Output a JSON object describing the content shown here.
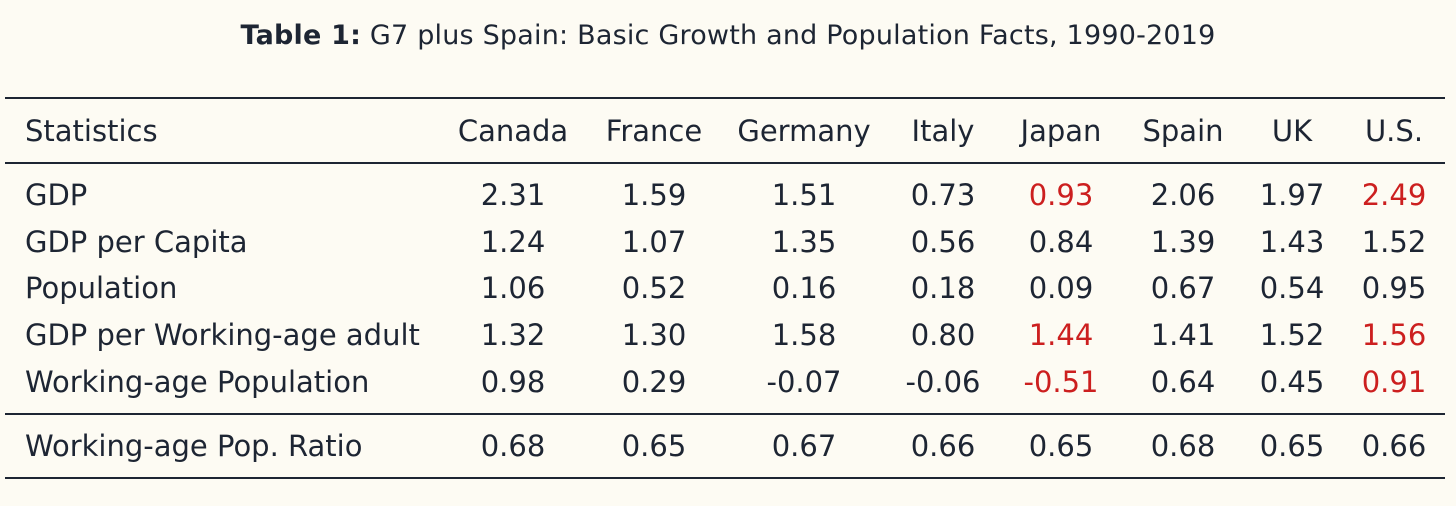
{
  "caption": {
    "label": "Table 1:",
    "title": "G7 plus Spain: Basic Growth and Population Facts, 1990-2019"
  },
  "header": [
    "Statistics",
    "Canada",
    "France",
    "Germany",
    "Italy",
    "Japan",
    "Spain",
    "UK",
    "U.S."
  ],
  "rows": [
    [
      "GDP",
      "2.31",
      "1.59",
      "1.51",
      "0.73",
      "0.93",
      "2.06",
      "1.97",
      "2.49"
    ],
    [
      "GDP per Capita",
      "1.24",
      "1.07",
      "1.35",
      "0.56",
      "0.84",
      "1.39",
      "1.43",
      "1.52"
    ],
    [
      "Population",
      "1.06",
      "0.52",
      "0.16",
      "0.18",
      "0.09",
      "0.67",
      "0.54",
      "0.95"
    ],
    [
      "GDP per Working-age adult",
      "1.32",
      "1.30",
      "1.58",
      "0.80",
      "1.44",
      "1.41",
      "1.52",
      "1.56"
    ],
    [
      "Working-age Population",
      "0.98",
      "0.29",
      "-0.07",
      "-0.06",
      "-0.51",
      "0.64",
      "0.45",
      "0.91"
    ],
    [
      "Working-age Pop. Ratio",
      "0.68",
      "0.65",
      "0.67",
      "0.66",
      "0.65",
      "0.68",
      "0.65",
      "0.66"
    ]
  ],
  "highlight_color": "#cc1f1f",
  "text_color": "#1d2533",
  "background_color": "#fdfbf3"
}
